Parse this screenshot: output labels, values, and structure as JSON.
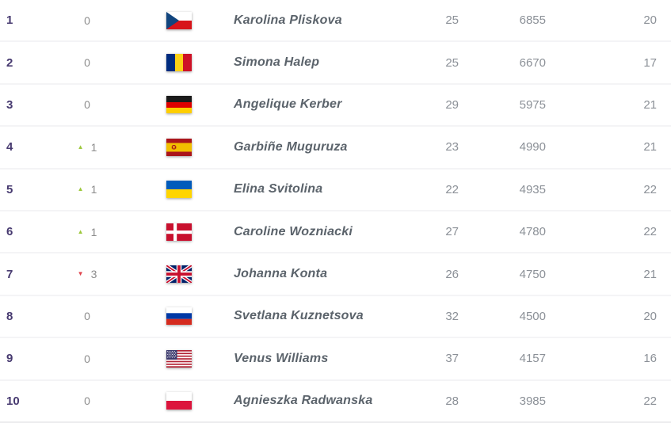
{
  "table": {
    "semantic_columns": [
      "rank",
      "rank_movement",
      "country_flag",
      "player_name",
      "age",
      "points",
      "tournaments_played"
    ],
    "rows": [
      {
        "rank": "1",
        "move_dir": "none",
        "move_val": "0",
        "flag": "cze",
        "flag_name": "czech-republic-flag",
        "name": "Karolina Pliskova",
        "age": "25",
        "points": "6855",
        "tournaments": "20"
      },
      {
        "rank": "2",
        "move_dir": "none",
        "move_val": "0",
        "flag": "rou",
        "flag_name": "romania-flag",
        "name": "Simona Halep",
        "age": "25",
        "points": "6670",
        "tournaments": "17"
      },
      {
        "rank": "3",
        "move_dir": "none",
        "move_val": "0",
        "flag": "ger",
        "flag_name": "germany-flag",
        "name": "Angelique Kerber",
        "age": "29",
        "points": "5975",
        "tournaments": "21"
      },
      {
        "rank": "4",
        "move_dir": "up",
        "move_val": "1",
        "flag": "esp",
        "flag_name": "spain-flag",
        "name": "Garbiñe Muguruza",
        "age": "23",
        "points": "4990",
        "tournaments": "21"
      },
      {
        "rank": "5",
        "move_dir": "up",
        "move_val": "1",
        "flag": "ukr",
        "flag_name": "ukraine-flag",
        "name": "Elina Svitolina",
        "age": "22",
        "points": "4935",
        "tournaments": "22"
      },
      {
        "rank": "6",
        "move_dir": "up",
        "move_val": "1",
        "flag": "den",
        "flag_name": "denmark-flag",
        "name": "Caroline Wozniacki",
        "age": "27",
        "points": "4780",
        "tournaments": "22"
      },
      {
        "rank": "7",
        "move_dir": "down",
        "move_val": "3",
        "flag": "gbr",
        "flag_name": "united-kingdom-flag",
        "name": "Johanna Konta",
        "age": "26",
        "points": "4750",
        "tournaments": "21"
      },
      {
        "rank": "8",
        "move_dir": "none",
        "move_val": "0",
        "flag": "rus",
        "flag_name": "russia-flag",
        "name": "Svetlana Kuznetsova",
        "age": "32",
        "points": "4500",
        "tournaments": "20"
      },
      {
        "rank": "9",
        "move_dir": "none",
        "move_val": "0",
        "flag": "usa",
        "flag_name": "united-states-flag",
        "name": "Venus Williams",
        "age": "37",
        "points": "4157",
        "tournaments": "16"
      },
      {
        "rank": "10",
        "move_dir": "none",
        "move_val": "0",
        "flag": "pol",
        "flag_name": "poland-flag",
        "name": "Agnieszka Radwanska",
        "age": "28",
        "points": "3985",
        "tournaments": "22"
      }
    ]
  },
  "icons": {
    "up": "triangle-up-icon",
    "down": "triangle-down-icon"
  },
  "colors": {
    "rank_text": "#473a70",
    "name_text": "#5b636b",
    "number_text": "#8b9097",
    "movement_up": "#9dc83c",
    "movement_down": "#e0434d",
    "row_separator": "#f4f4f6"
  }
}
